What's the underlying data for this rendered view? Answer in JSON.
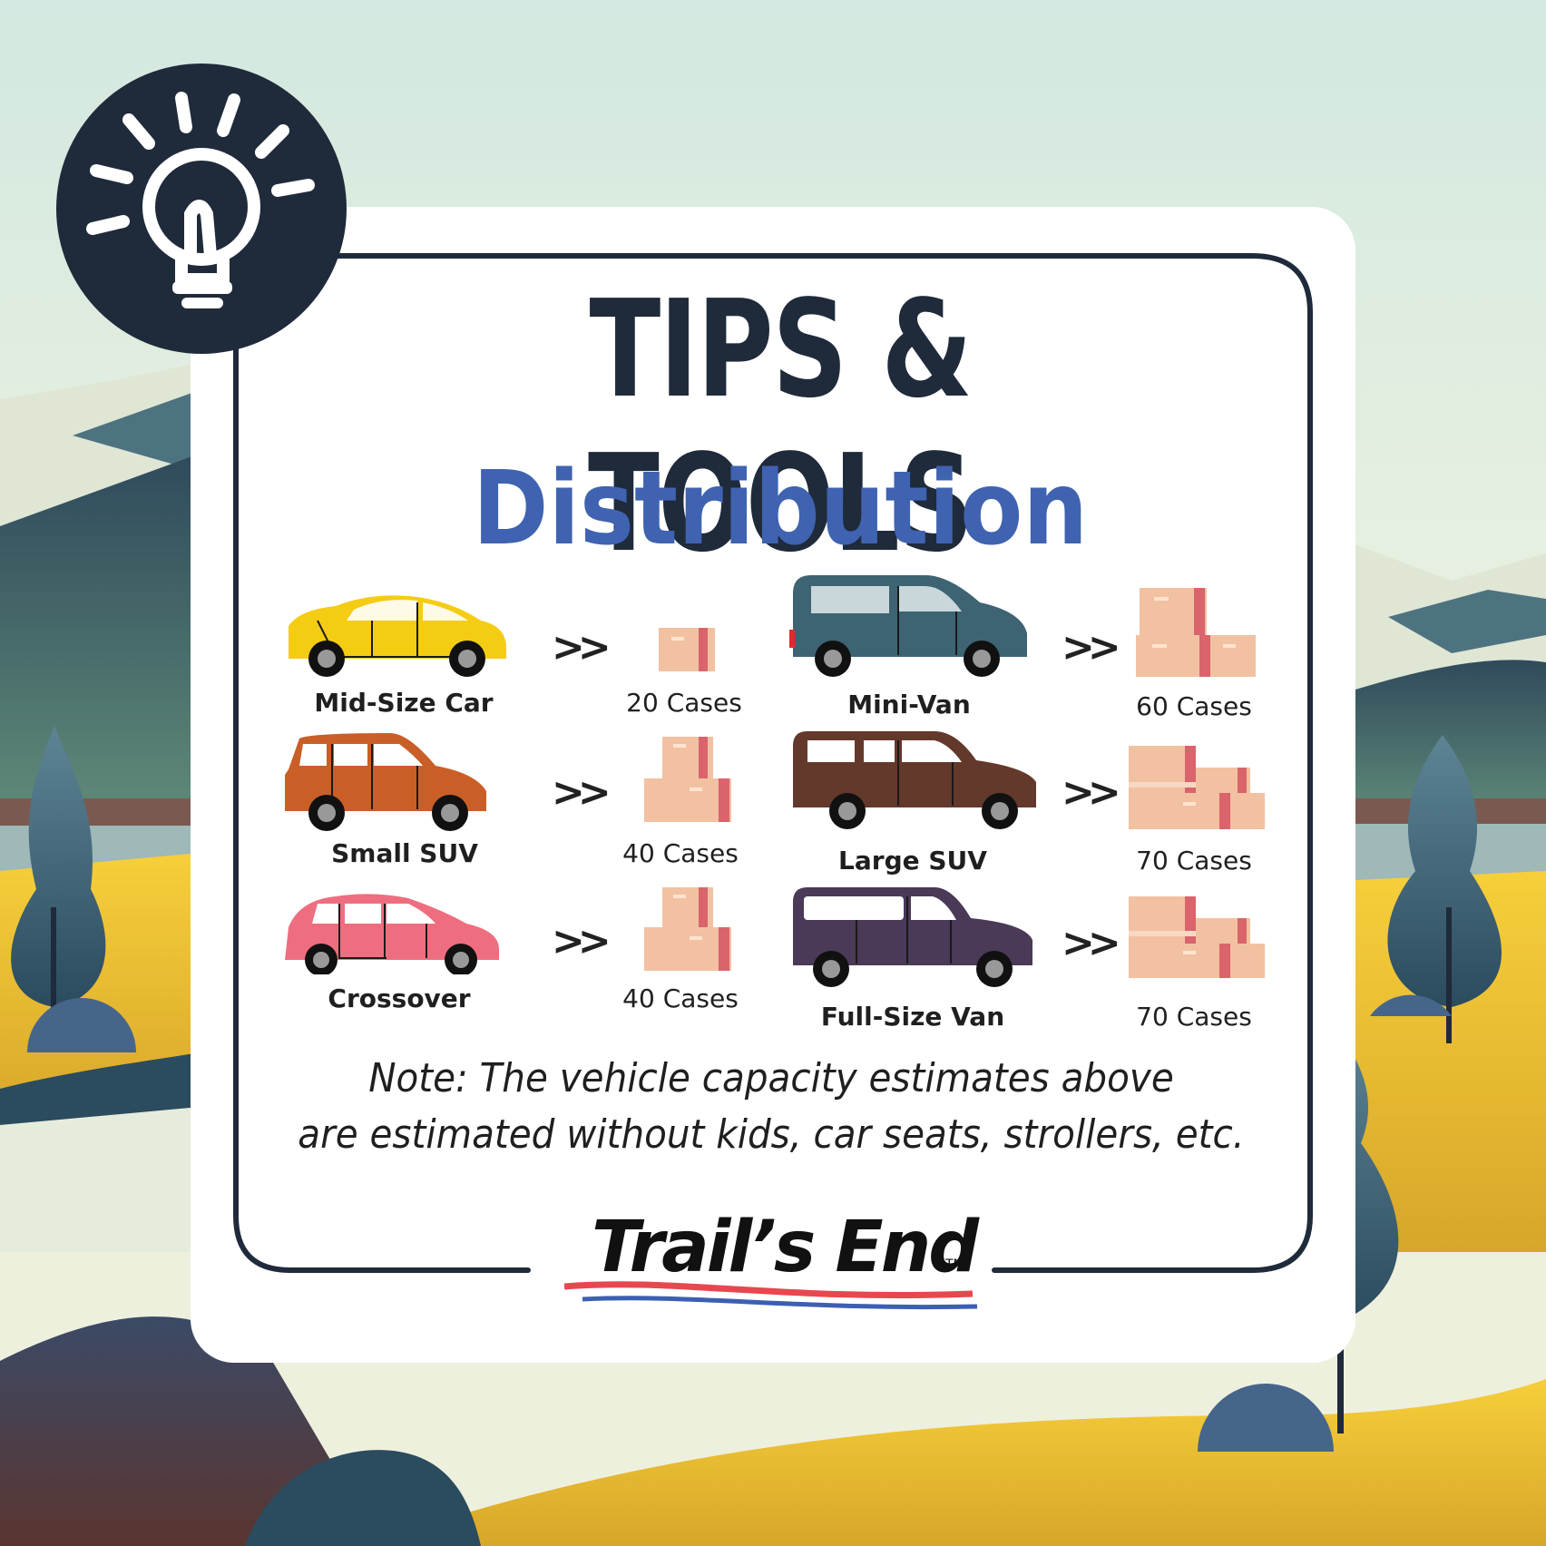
{
  "header": {
    "title": "TIPS & TOOLS",
    "subtitle": "Distribution"
  },
  "icons": {
    "badge": "lightbulb-icon",
    "arrow_glyph": ">>"
  },
  "vehicles": [
    {
      "name": "Mid-Size Car",
      "cases": "20 Cases",
      "color": "#f5cc14"
    },
    {
      "name": "Small SUV",
      "cases": "40 Cases",
      "color": "#c95f27"
    },
    {
      "name": "Crossover",
      "cases": "40 Cases",
      "color": "#ee6e7f"
    },
    {
      "name": "Mini-Van",
      "cases": "60 Cases",
      "color": "#3e6373"
    },
    {
      "name": "Large SUV",
      "cases": "70 Cases",
      "color": "#63392b"
    },
    {
      "name": "Full-Size Van",
      "cases": "70 Cases",
      "color": "#4a3957"
    }
  ],
  "note": {
    "line1": "Note: The vehicle capacity estimates above",
    "line2": "are estimated without kids, car seats, strollers, etc."
  },
  "logo": {
    "text": "Trail’s End",
    "tm": "TM"
  },
  "colors": {
    "title": "#1f2a3b",
    "subtitle": "#3f63b0",
    "frame": "#1f2a3b",
    "logo_red": "#e8474f",
    "logo_blue": "#3c5fb3"
  }
}
